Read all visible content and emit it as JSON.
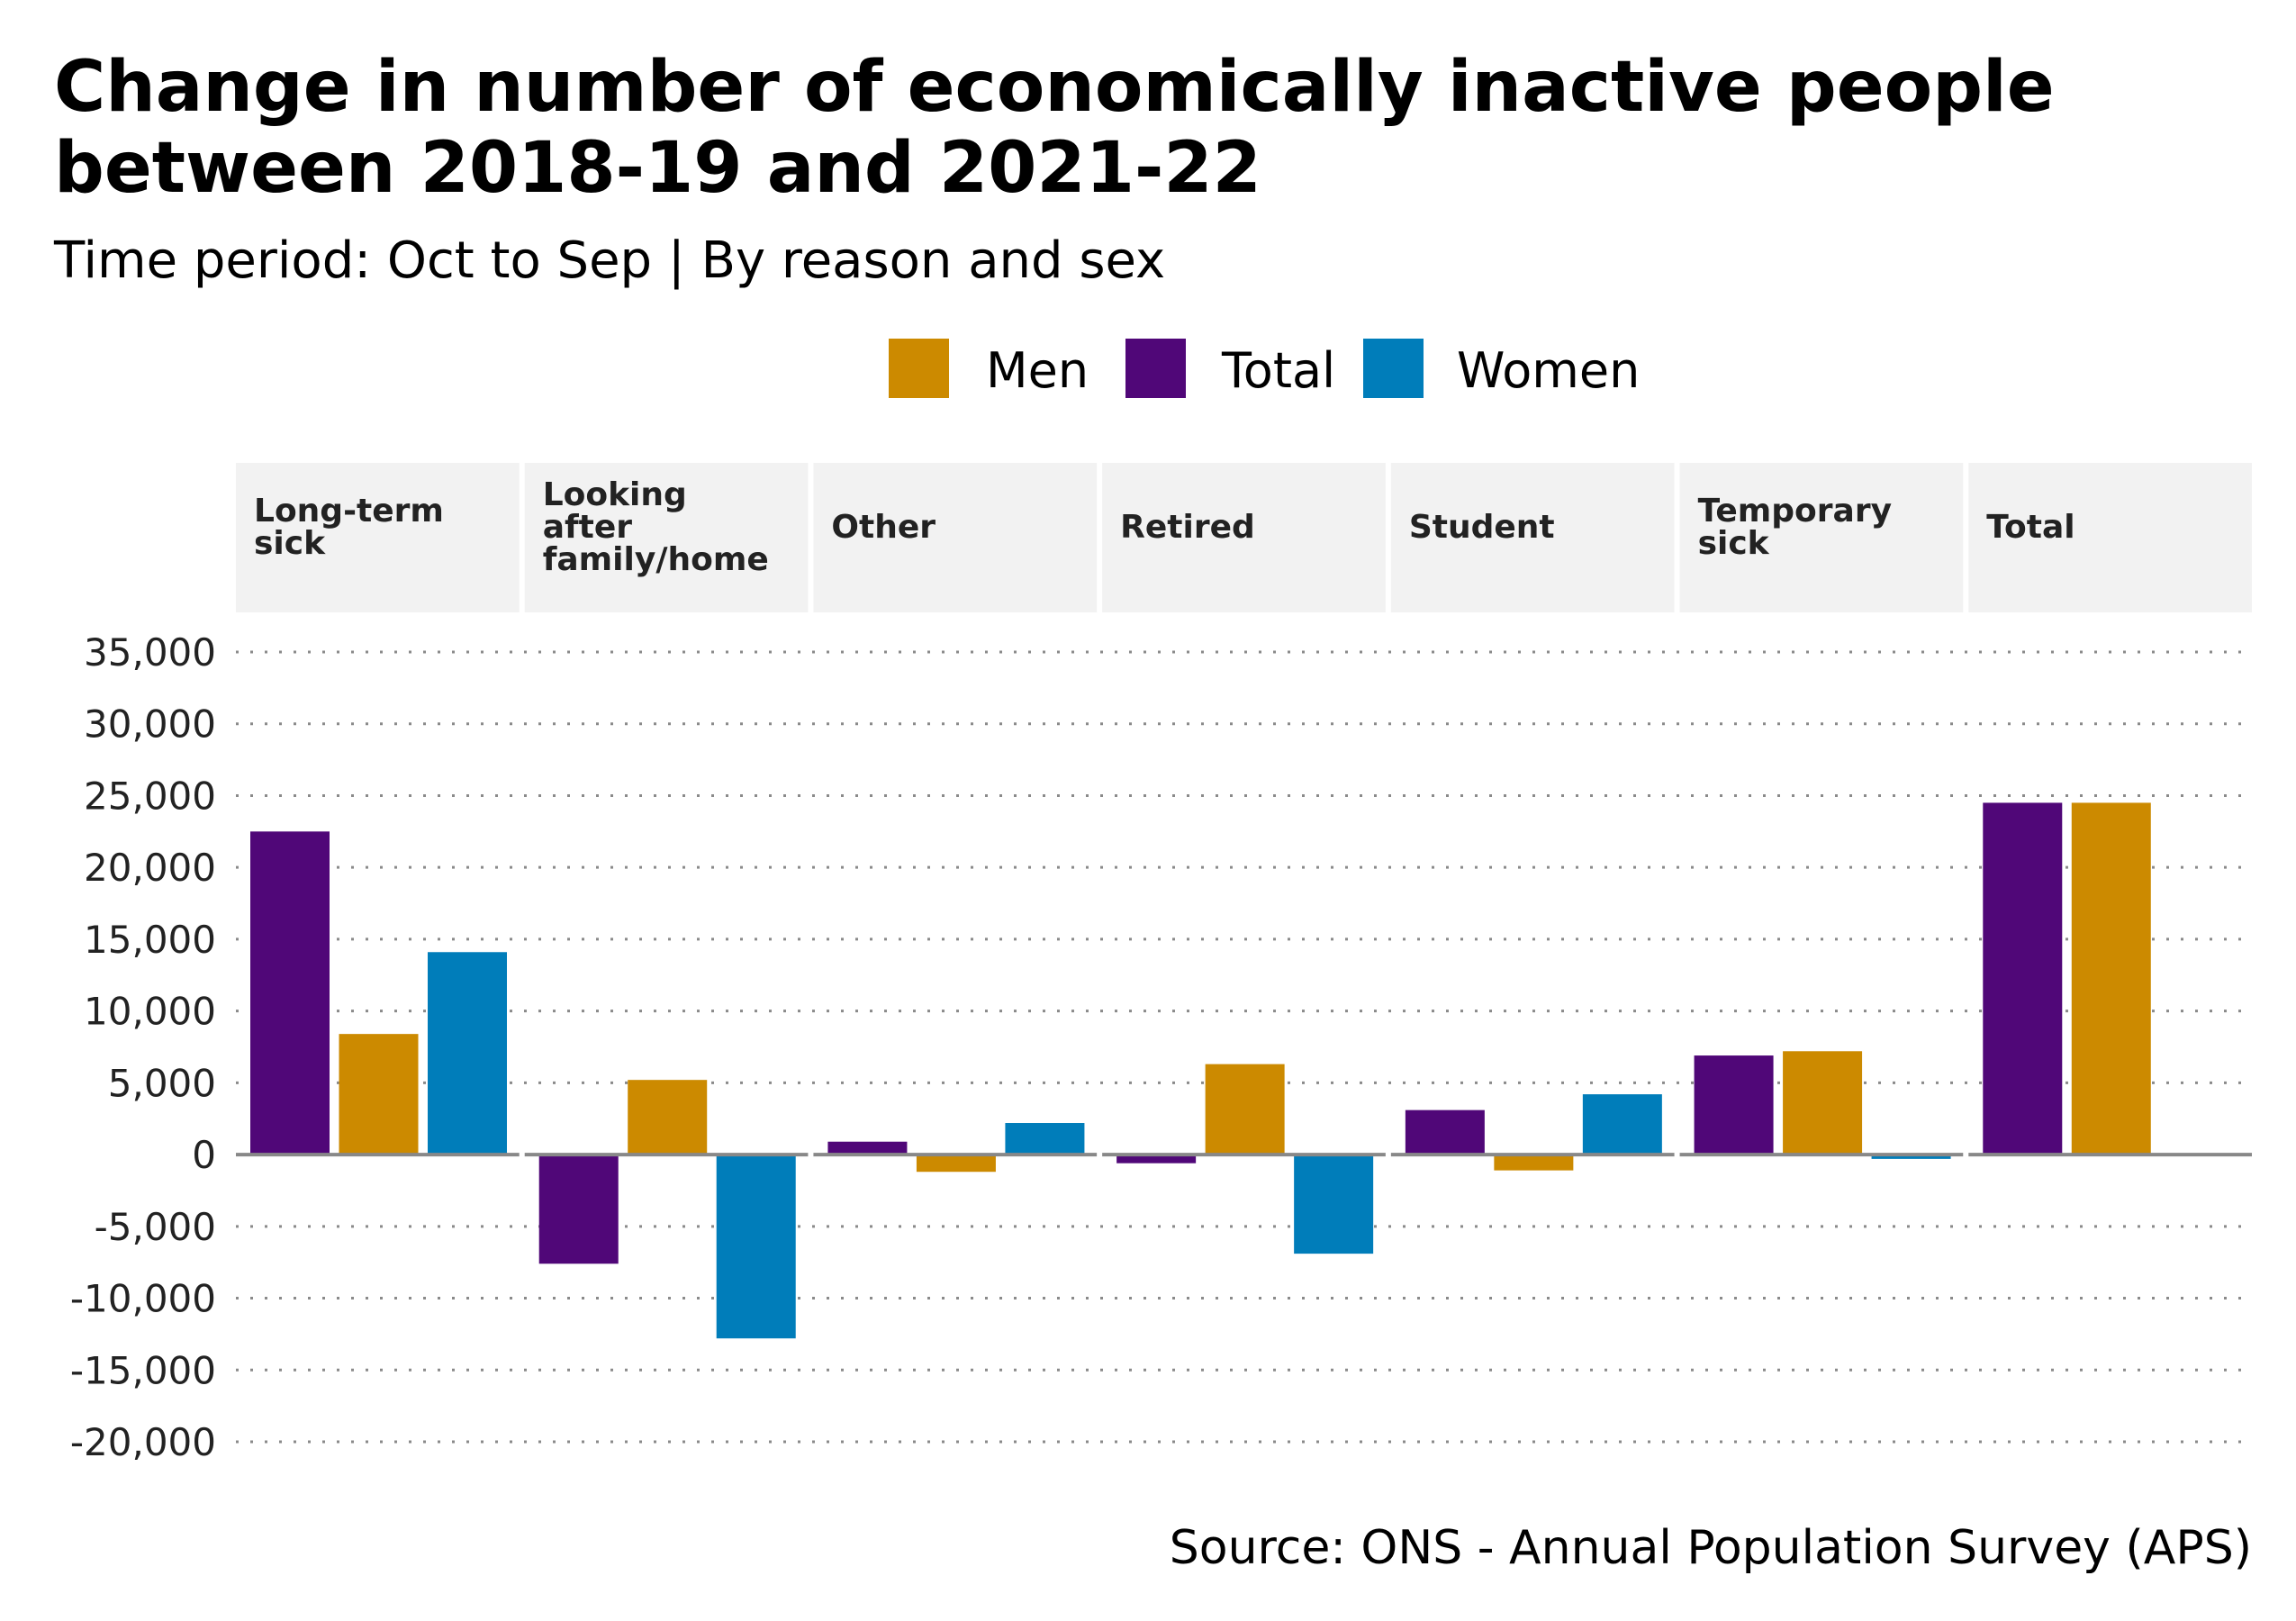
{
  "chart_data": {
    "type": "bar",
    "title_lines": [
      "Change in number of economically inactive people",
      "between 2018-19 and 2021-22"
    ],
    "subtitle": "Time period: Oct to Sep | By reason and sex",
    "source": "Source: ONS - Annual Population Survey (APS)",
    "legend": {
      "position": "top",
      "entries": [
        {
          "name": "Men",
          "color": "#CC8A00"
        },
        {
          "name": "Total",
          "color": "#500778"
        },
        {
          "name": "Women",
          "color": "#007DBA"
        }
      ]
    },
    "facets": [
      {
        "label": [
          "Long-term",
          "sick"
        ]
      },
      {
        "label": [
          "Looking",
          "after",
          "family/home"
        ]
      },
      {
        "label": [
          "Other"
        ]
      },
      {
        "label": [
          "Retired"
        ]
      },
      {
        "label": [
          "Student"
        ]
      },
      {
        "label": [
          "Temporary",
          "sick"
        ]
      },
      {
        "label": [
          "Total"
        ]
      }
    ],
    "bar_order": [
      "Total",
      "Men",
      "Women"
    ],
    "series": [
      {
        "name": "Total",
        "color": "#500778",
        "values": [
          22500,
          -7600,
          900,
          -600,
          3100,
          6900,
          24500
        ]
      },
      {
        "name": "Men",
        "color": "#CC8A00",
        "values": [
          8400,
          5200,
          -1200,
          6300,
          -1100,
          7200,
          24500
        ]
      },
      {
        "name": "Women",
        "color": "#007DBA",
        "values": [
          14100,
          -12800,
          2200,
          -6900,
          4200,
          -300,
          100
        ]
      }
    ],
    "ylim": [
      -20000,
      35000
    ],
    "yticks": [
      "35,000",
      "30,000",
      "25,000",
      "20,000",
      "15,000",
      "10,000",
      "5,000",
      "0",
      "-5,000",
      "-10,000",
      "-15,000",
      "-20,000"
    ],
    "ytick_values": [
      35000,
      30000,
      25000,
      20000,
      15000,
      10000,
      5000,
      0,
      -5000,
      -10000,
      -15000,
      -20000
    ],
    "grid": "horizontal dotted",
    "xlabel": "",
    "ylabel": ""
  }
}
